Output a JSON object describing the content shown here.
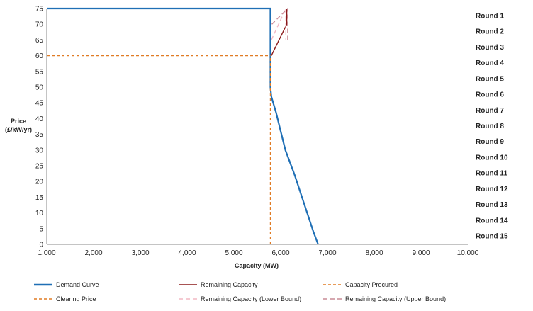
{
  "chart_data": {
    "type": "line",
    "xlabel": "Capacity (MW)",
    "ylabel": [
      "Price",
      "(£/kW/yr)"
    ],
    "xlim": [
      1000,
      10000
    ],
    "ylim": [
      0,
      75
    ],
    "x_ticks": [
      1000,
      2000,
      3000,
      4000,
      5000,
      6000,
      7000,
      8000,
      9000,
      10000
    ],
    "x_tick_labels": [
      "1,000",
      "2,000",
      "3,000",
      "4,000",
      "5,000",
      "6,000",
      "7,000",
      "8,000",
      "9,000",
      "10,000"
    ],
    "y_ticks": [
      0,
      5,
      10,
      15,
      20,
      25,
      30,
      35,
      40,
      45,
      50,
      55,
      60,
      65,
      70,
      75
    ],
    "grid": false,
    "legend_position": "bottom",
    "round_labels": [
      "Round 1",
      "Round 2",
      "Round 3",
      "Round 4",
      "Round 5",
      "Round 6",
      "Round 7",
      "Round 8",
      "Round 9",
      "Round 10",
      "Round 11",
      "Round 12",
      "Round 13",
      "Round 14",
      "Round 15"
    ],
    "series": [
      {
        "name": "Demand Curve",
        "color": "#1f6fb5",
        "style": "solid",
        "points": [
          [
            1000,
            75
          ],
          [
            5780,
            75
          ],
          [
            5780,
            50
          ],
          [
            5800,
            47
          ],
          [
            5900,
            42
          ],
          [
            6000,
            36
          ],
          [
            6100,
            30
          ],
          [
            6300,
            22
          ],
          [
            6500,
            13
          ],
          [
            6700,
            4
          ],
          [
            6800,
            0
          ]
        ]
      },
      {
        "name": "Remaining Capacity",
        "color": "#8b1a1a",
        "style": "solid",
        "points": [
          [
            5800,
            60
          ],
          [
            6130,
            70
          ],
          [
            6130,
            75
          ]
        ]
      },
      {
        "name": "Capacity Procured",
        "color": "#e07b24",
        "style": "dashed",
        "points": [
          [
            5780,
            0
          ],
          [
            5780,
            60
          ]
        ]
      },
      {
        "name": "Clearing Price",
        "color": "#e07b24",
        "style": "dashed",
        "points": [
          [
            1000,
            60
          ],
          [
            5780,
            60
          ]
        ]
      },
      {
        "name": "Remaining Capacity (Lower Bound)",
        "color": "#f2b8c4",
        "style": "dashed",
        "points": [
          [
            5800,
            65
          ],
          [
            6110,
            75
          ],
          [
            6110,
            65
          ]
        ]
      },
      {
        "name": "Remaining Capacity (Upper Bound)",
        "color": "#c98b96",
        "style": "dashed",
        "points": [
          [
            5810,
            70
          ],
          [
            6150,
            75
          ],
          [
            6150,
            65
          ]
        ]
      }
    ]
  }
}
